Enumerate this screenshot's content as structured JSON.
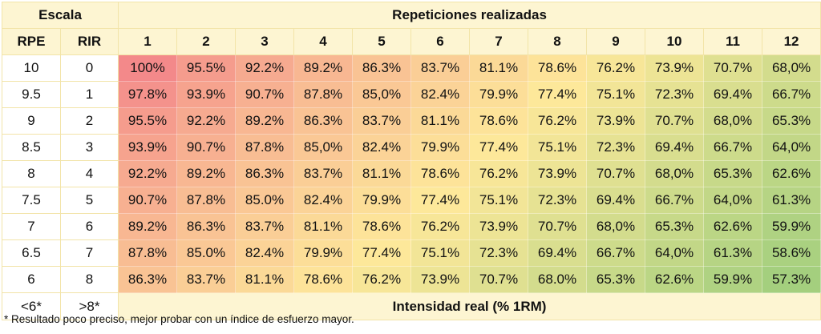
{
  "header": {
    "scale_title": "Escala",
    "reps_title": "Repeticiones realizadas",
    "rpe_label": "RPE",
    "rir_label": "RIR",
    "reps": [
      "1",
      "2",
      "3",
      "4",
      "5",
      "6",
      "7",
      "8",
      "9",
      "10",
      "11",
      "12"
    ]
  },
  "rows": [
    {
      "rpe": "10",
      "rir": "0",
      "values": [
        "100%",
        "95.5%",
        "92.2%",
        "89.2%",
        "86.3%",
        "83.7%",
        "81.1%",
        "78.6%",
        "76.2%",
        "73.9%",
        "70.7%",
        "68,0%"
      ]
    },
    {
      "rpe": "9.5",
      "rir": "1",
      "values": [
        "97.8%",
        "93.9%",
        "90.7%",
        "87.8%",
        "85,0%",
        "82.4%",
        "79.9%",
        "77.4%",
        "75.1%",
        "72.3%",
        "69.4%",
        "66.7%"
      ]
    },
    {
      "rpe": "9",
      "rir": "2",
      "values": [
        "95.5%",
        "92.2%",
        "89.2%",
        "86.3%",
        "83.7%",
        "81.1%",
        "78.6%",
        "76.2%",
        "73.9%",
        "70.7%",
        "68,0%",
        "65.3%"
      ]
    },
    {
      "rpe": "8.5",
      "rir": "3",
      "values": [
        "93.9%",
        "90.7%",
        "87.8%",
        "85,0%",
        "82.4%",
        "79.9%",
        "77.4%",
        "75.1%",
        "72.3%",
        "69.4%",
        "66.7%",
        "64,0%"
      ]
    },
    {
      "rpe": "8",
      "rir": "4",
      "values": [
        "92.2%",
        "89.2%",
        "86.3%",
        "83.7%",
        "81.1%",
        "78.6%",
        "76.2%",
        "73.9%",
        "70.7%",
        "68,0%",
        "65.3%",
        "62.6%"
      ]
    },
    {
      "rpe": "7.5",
      "rir": "5",
      "values": [
        "90.7%",
        "87.8%",
        "85.0%",
        "82.4%",
        "79.9%",
        "77.4%",
        "75.1%",
        "72.3%",
        "69.4%",
        "66.7%",
        "64,0%",
        "61.3%"
      ]
    },
    {
      "rpe": "7",
      "rir": "6",
      "values": [
        "89.2%",
        "86.3%",
        "83.7%",
        "81.1%",
        "78.6%",
        "76.2%",
        "73.9%",
        "70.7%",
        "68,0%",
        "65.3%",
        "62.6%",
        "59.9%"
      ]
    },
    {
      "rpe": "6.5",
      "rir": "7",
      "values": [
        "87.8%",
        "85.0%",
        "82.4%",
        "79.9%",
        "77.4%",
        "75.1%",
        "72.3%",
        "69.4%",
        "66.7%",
        "64,0%",
        "61.3%",
        "58.6%"
      ]
    },
    {
      "rpe": "6",
      "rir": "8",
      "values": [
        "86.3%",
        "83.7%",
        "81.1%",
        "78.6%",
        "76.2%",
        "73.9%",
        "70.7%",
        "68.0%",
        "65.3%",
        "62.6%",
        "59.9%",
        "57.3%"
      ]
    }
  ],
  "footer": {
    "rpe": "<6*",
    "rir": ">8*",
    "intensity_label": "Intensidad real (% 1RM)"
  },
  "note": "* Resultado poco preciso, mejor probar con un índice de esfuerzo mayor.",
  "colors": {
    "high": "#f3898a",
    "mid": "#fde89a",
    "low": "#a4cf7e",
    "header_bg": "#fdf5d2",
    "border": "#f2e4a8"
  }
}
